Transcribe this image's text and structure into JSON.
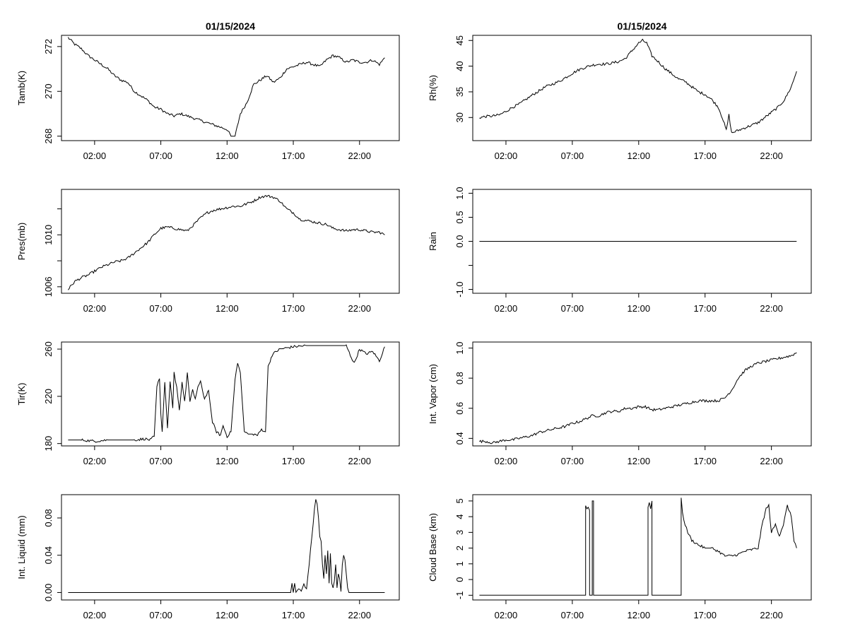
{
  "chart_data": [
    {
      "type": "line",
      "title": "01/15/2024",
      "xlabel": "",
      "ylabel": "Tamb(K)",
      "xlim": [
        -0.5,
        25
      ],
      "ylim": [
        267.8,
        272.5
      ],
      "xticks": [
        2,
        7,
        12,
        17,
        22
      ],
      "xtick_labels": [
        "02:00",
        "07:00",
        "12:00",
        "17:00",
        "22:00"
      ],
      "yticks": [
        268,
        270,
        272
      ],
      "ytick_labels": [
        "268",
        "270",
        "272"
      ],
      "series": [
        {
          "name": "Tamb(K)",
          "x": [
            0,
            0.5,
            1,
            1.5,
            2,
            2.5,
            3,
            3.5,
            4,
            4.5,
            5,
            5.5,
            6,
            6.5,
            7,
            7.5,
            8,
            8.5,
            9,
            9.5,
            10,
            10.5,
            11,
            11.5,
            12,
            12.3,
            12.6,
            13,
            13.5,
            14,
            14.5,
            15,
            15.5,
            16,
            16.5,
            17,
            17.5,
            18,
            18.5,
            19,
            19.5,
            20,
            20.5,
            21,
            21.5,
            22,
            22.5,
            23,
            23.5,
            23.9
          ],
          "values": [
            272.4,
            272.1,
            271.9,
            271.6,
            271.4,
            271.2,
            271.0,
            270.7,
            270.5,
            270.4,
            270.0,
            269.8,
            269.6,
            269.3,
            269.2,
            269.0,
            268.9,
            269.0,
            268.9,
            268.8,
            268.7,
            268.6,
            268.5,
            268.4,
            268.3,
            268.0,
            268.0,
            269.0,
            269.5,
            270.3,
            270.5,
            270.7,
            270.4,
            270.6,
            271.0,
            271.1,
            271.2,
            271.3,
            271.2,
            271.1,
            271.4,
            271.6,
            271.5,
            271.3,
            271.4,
            271.3,
            271.3,
            271.4,
            271.2,
            271.5
          ]
        }
      ]
    },
    {
      "type": "line",
      "title": "01/15/2024",
      "xlabel": "",
      "ylabel": "Rh(%)",
      "xlim": [
        -0.5,
        25
      ],
      "ylim": [
        25.5,
        46
      ],
      "xticks": [
        2,
        7,
        12,
        17,
        22
      ],
      "xtick_labels": [
        "02:00",
        "07:00",
        "12:00",
        "17:00",
        "22:00"
      ],
      "yticks": [
        30,
        35,
        40,
        45
      ],
      "ytick_labels": [
        "30",
        "35",
        "40",
        "45"
      ],
      "series": [
        {
          "name": "Rh(%)",
          "x": [
            0,
            0.5,
            1,
            1.5,
            2,
            2.5,
            3,
            3.5,
            4,
            4.5,
            5,
            5.5,
            6,
            6.5,
            7,
            7.5,
            8,
            8.5,
            9,
            9.5,
            10,
            10.5,
            11,
            11.5,
            12,
            12.3,
            12.6,
            13,
            13.5,
            14,
            14.5,
            15,
            15.5,
            16,
            16.5,
            17,
            17.5,
            18,
            18.3,
            18.6,
            18.8,
            19,
            19.5,
            20,
            20.5,
            21,
            21.5,
            22,
            22.5,
            23,
            23.5,
            23.9
          ],
          "values": [
            30.0,
            30.2,
            30.3,
            30.5,
            31.2,
            32.0,
            32.6,
            33.5,
            34.4,
            35.2,
            36.0,
            36.5,
            37.0,
            37.8,
            38.6,
            39.3,
            39.8,
            40.2,
            40.4,
            40.4,
            40.6,
            40.9,
            41.5,
            43.0,
            44.5,
            45.0,
            44.5,
            42.0,
            40.8,
            39.5,
            38.5,
            37.5,
            37.0,
            36.0,
            35.0,
            34.5,
            33.5,
            32.0,
            30.0,
            27.5,
            30.5,
            27.0,
            27.5,
            28.0,
            28.5,
            29.0,
            30.0,
            31.0,
            32.0,
            33.5,
            36.0,
            39.0
          ]
        }
      ]
    },
    {
      "type": "line",
      "title": "",
      "xlabel": "",
      "ylabel": "Pres(mb)",
      "xlim": [
        -0.5,
        25
      ],
      "ylim": [
        1005.5,
        1013.5
      ],
      "xticks": [
        2,
        7,
        12,
        17,
        22
      ],
      "xtick_labels": [
        "02:00",
        "07:00",
        "12:00",
        "17:00",
        "22:00"
      ],
      "yticks": [
        1006,
        1008,
        1010,
        1012
      ],
      "ytick_labels": [
        "1006",
        "",
        "1010",
        ""
      ],
      "series": [
        {
          "name": "Pres(mb)",
          "x": [
            0,
            0.5,
            1,
            1.5,
            2,
            2.5,
            3,
            3.5,
            4,
            4.5,
            5,
            5.5,
            6,
            6.5,
            7,
            7.5,
            8,
            8.5,
            9,
            9.5,
            10,
            10.5,
            11,
            11.5,
            12,
            12.5,
            13,
            13.5,
            14,
            14.5,
            15,
            15.5,
            16,
            16.5,
            17,
            17.5,
            18,
            18.5,
            19,
            19.5,
            20,
            20.5,
            21,
            21.5,
            22,
            22.5,
            23,
            23.5,
            23.9
          ],
          "values": [
            1005.8,
            1006.4,
            1006.7,
            1006.9,
            1007.2,
            1007.5,
            1007.7,
            1007.9,
            1008.0,
            1008.2,
            1008.6,
            1009.0,
            1009.4,
            1010.0,
            1010.5,
            1010.6,
            1010.5,
            1010.4,
            1010.3,
            1010.8,
            1011.3,
            1011.7,
            1011.9,
            1012.0,
            1012.1,
            1012.2,
            1012.2,
            1012.4,
            1012.6,
            1012.9,
            1013.0,
            1012.9,
            1012.6,
            1012.0,
            1011.7,
            1011.2,
            1011.1,
            1011.0,
            1010.9,
            1010.8,
            1010.5,
            1010.4,
            1010.3,
            1010.4,
            1010.4,
            1010.3,
            1010.2,
            1010.2,
            1010.0
          ]
        }
      ]
    },
    {
      "type": "line",
      "title": "",
      "xlabel": "",
      "ylabel": "Rain",
      "xlim": [
        -0.5,
        25
      ],
      "ylim": [
        -1.08,
        1.08
      ],
      "xticks": [
        2,
        7,
        12,
        17,
        22
      ],
      "xtick_labels": [
        "02:00",
        "07:00",
        "12:00",
        "17:00",
        "22:00"
      ],
      "yticks": [
        -1.0,
        -0.5,
        0.0,
        0.5,
        1.0
      ],
      "ytick_labels": [
        "-1.0",
        "",
        "0.0",
        "0.5",
        "1.0"
      ],
      "series": [
        {
          "name": "Rain",
          "x": [
            0,
            23.9
          ],
          "values": [
            0,
            0
          ]
        }
      ]
    },
    {
      "type": "line",
      "title": "",
      "xlabel": "",
      "ylabel": "Tir(K)",
      "xlim": [
        -0.5,
        25
      ],
      "ylim": [
        178,
        266
      ],
      "xticks": [
        2,
        7,
        12,
        17,
        22
      ],
      "xtick_labels": [
        "02:00",
        "07:00",
        "12:00",
        "17:00",
        "22:00"
      ],
      "yticks": [
        180,
        220,
        260
      ],
      "ytick_labels": [
        "180",
        "220",
        "260"
      ],
      "series": [
        {
          "name": "Tir(K)",
          "x": [
            0,
            1,
            2,
            3,
            4,
            5,
            5.8,
            6.2,
            6.5,
            6.7,
            6.9,
            7.0,
            7.1,
            7.3,
            7.5,
            7.7,
            7.9,
            8.0,
            8.2,
            8.4,
            8.6,
            8.8,
            9.0,
            9.2,
            9.4,
            9.6,
            9.8,
            10.0,
            10.3,
            10.6,
            10.9,
            11.2,
            11.5,
            11.7,
            12.0,
            12.3,
            12.6,
            12.8,
            13.0,
            13.3,
            13.6,
            14.0,
            14.3,
            14.6,
            14.9,
            15.1,
            15.4,
            15.7,
            16.0,
            16.5,
            17,
            18,
            19,
            20,
            20.5,
            21,
            21.3,
            21.6,
            22,
            22.5,
            23,
            23.5,
            23.9
          ],
          "values": [
            183,
            183,
            182,
            183,
            183,
            183,
            184,
            183,
            186,
            228,
            235,
            205,
            190,
            232,
            193,
            232,
            210,
            240,
            228,
            208,
            232,
            215,
            240,
            215,
            225,
            218,
            228,
            232,
            218,
            225,
            198,
            190,
            187,
            195,
            186,
            190,
            235,
            248,
            240,
            190,
            188,
            188,
            187,
            192,
            190,
            245,
            255,
            258,
            260,
            261,
            262,
            263,
            263,
            263,
            263,
            263,
            255,
            248,
            260,
            256,
            258,
            250,
            262
          ]
        }
      ]
    },
    {
      "type": "line",
      "title": "",
      "xlabel": "",
      "ylabel": "Int. Vapor (cm)",
      "xlim": [
        -0.5,
        25
      ],
      "ylim": [
        0.35,
        1.04
      ],
      "xticks": [
        2,
        7,
        12,
        17,
        22
      ],
      "xtick_labels": [
        "02:00",
        "07:00",
        "12:00",
        "17:00",
        "22:00"
      ],
      "yticks": [
        0.4,
        0.6,
        0.8,
        1.0
      ],
      "ytick_labels": [
        "0.4",
        "0.6",
        "0.8",
        "1.0"
      ],
      "series": [
        {
          "name": "Int. Vapor (cm)",
          "x": [
            0,
            0.5,
            1,
            1.5,
            2,
            2.5,
            3,
            3.5,
            4,
            4.5,
            5,
            5.5,
            6,
            6.5,
            7,
            7.5,
            8,
            8.5,
            9,
            9.5,
            10,
            10.5,
            11,
            11.5,
            12,
            12.5,
            13,
            13.5,
            14,
            14.5,
            15,
            15.5,
            16,
            16.5,
            17,
            17.5,
            18,
            18.5,
            19,
            19.5,
            20,
            20.5,
            21,
            21.5,
            22,
            22.5,
            23,
            23.5,
            23.9
          ],
          "values": [
            0.38,
            0.38,
            0.37,
            0.38,
            0.39,
            0.39,
            0.4,
            0.41,
            0.42,
            0.44,
            0.45,
            0.46,
            0.47,
            0.48,
            0.5,
            0.51,
            0.53,
            0.55,
            0.55,
            0.57,
            0.58,
            0.58,
            0.6,
            0.6,
            0.61,
            0.61,
            0.59,
            0.59,
            0.6,
            0.61,
            0.62,
            0.63,
            0.64,
            0.65,
            0.65,
            0.65,
            0.65,
            0.67,
            0.72,
            0.8,
            0.85,
            0.88,
            0.9,
            0.91,
            0.92,
            0.93,
            0.94,
            0.95,
            0.97
          ]
        }
      ]
    },
    {
      "type": "line",
      "title": "",
      "xlabel": "",
      "ylabel": "Int. Liquid (mm)",
      "xlim": [
        -0.5,
        25
      ],
      "ylim": [
        -0.008,
        0.105
      ],
      "xticks": [
        2,
        7,
        12,
        17,
        22
      ],
      "xtick_labels": [
        "02:00",
        "07:00",
        "12:00",
        "17:00",
        "22:00"
      ],
      "yticks": [
        0.0,
        0.04,
        0.08
      ],
      "ytick_labels": [
        "0.00",
        "0.04",
        "0.08"
      ],
      "series": [
        {
          "name": "Int. Liquid (mm)",
          "x": [
            0,
            10,
            16.8,
            16.9,
            17.0,
            17.1,
            17.2,
            17.4,
            17.6,
            17.8,
            18.0,
            18.2,
            18.4,
            18.6,
            18.7,
            18.8,
            18.9,
            19.0,
            19.1,
            19.2,
            19.3,
            19.4,
            19.5,
            19.6,
            19.7,
            19.8,
            19.9,
            20.0,
            20.1,
            20.2,
            20.3,
            20.4,
            20.5,
            20.6,
            20.7,
            20.8,
            20.9,
            21.0,
            21.1,
            21.2,
            21.5,
            22.5,
            23.9
          ],
          "values": [
            0,
            0,
            0,
            0.01,
            0,
            0.01,
            0,
            0.005,
            0.002,
            0.008,
            0.005,
            0.03,
            0.06,
            0.09,
            0.1,
            0.095,
            0.08,
            0.06,
            0.055,
            0.03,
            0.015,
            0.04,
            0.02,
            0.045,
            0.01,
            0.042,
            0.01,
            0.005,
            0.012,
            0.03,
            0.005,
            0.02,
            0.015,
            0.001,
            0.03,
            0.04,
            0.035,
            0.02,
            0.005,
            0,
            0,
            0,
            0
          ]
        }
      ]
    },
    {
      "type": "line",
      "title": "",
      "xlabel": "",
      "ylabel": "Cloud Base (km)",
      "xlim": [
        -0.5,
        25
      ],
      "ylim": [
        -1.3,
        5.4
      ],
      "xticks": [
        2,
        7,
        12,
        17,
        22
      ],
      "xtick_labels": [
        "02:00",
        "07:00",
        "12:00",
        "17:00",
        "22:00"
      ],
      "yticks": [
        -1,
        0,
        1,
        2,
        3,
        4,
        5
      ],
      "ytick_labels": [
        "-1",
        "0",
        "1",
        "2",
        "3",
        "4",
        "5"
      ],
      "series": [
        {
          "name": "Cloud Base (km)",
          "x": [
            0,
            8.0,
            8.0,
            8.1,
            8.2,
            8.3,
            8.3,
            8.5,
            8.5,
            8.6,
            8.6,
            12.7,
            12.7,
            12.8,
            12.9,
            13.0,
            13.0,
            15.2,
            15.2,
            15.3,
            15.5,
            15.7,
            16.0,
            16.5,
            17,
            17.5,
            18,
            18.5,
            19,
            19.5,
            20,
            20.5,
            21,
            21.3,
            21.6,
            21.8,
            22.0,
            22.3,
            22.6,
            22.9,
            23.2,
            23.5,
            23.7,
            23.9
          ],
          "values": [
            -1,
            -1,
            4.7,
            4.5,
            4.6,
            4.4,
            -1,
            -1,
            5.0,
            5.0,
            -1,
            -1,
            4.6,
            4.9,
            4.5,
            5.0,
            -1,
            -1,
            5.2,
            4.2,
            3.5,
            3.0,
            2.5,
            2.2,
            2.0,
            2.0,
            1.8,
            1.5,
            1.5,
            1.6,
            1.8,
            1.9,
            2.0,
            3.5,
            4.5,
            4.7,
            3.0,
            3.5,
            2.8,
            3.5,
            4.7,
            4.0,
            2.5,
            2.0
          ]
        }
      ]
    }
  ]
}
